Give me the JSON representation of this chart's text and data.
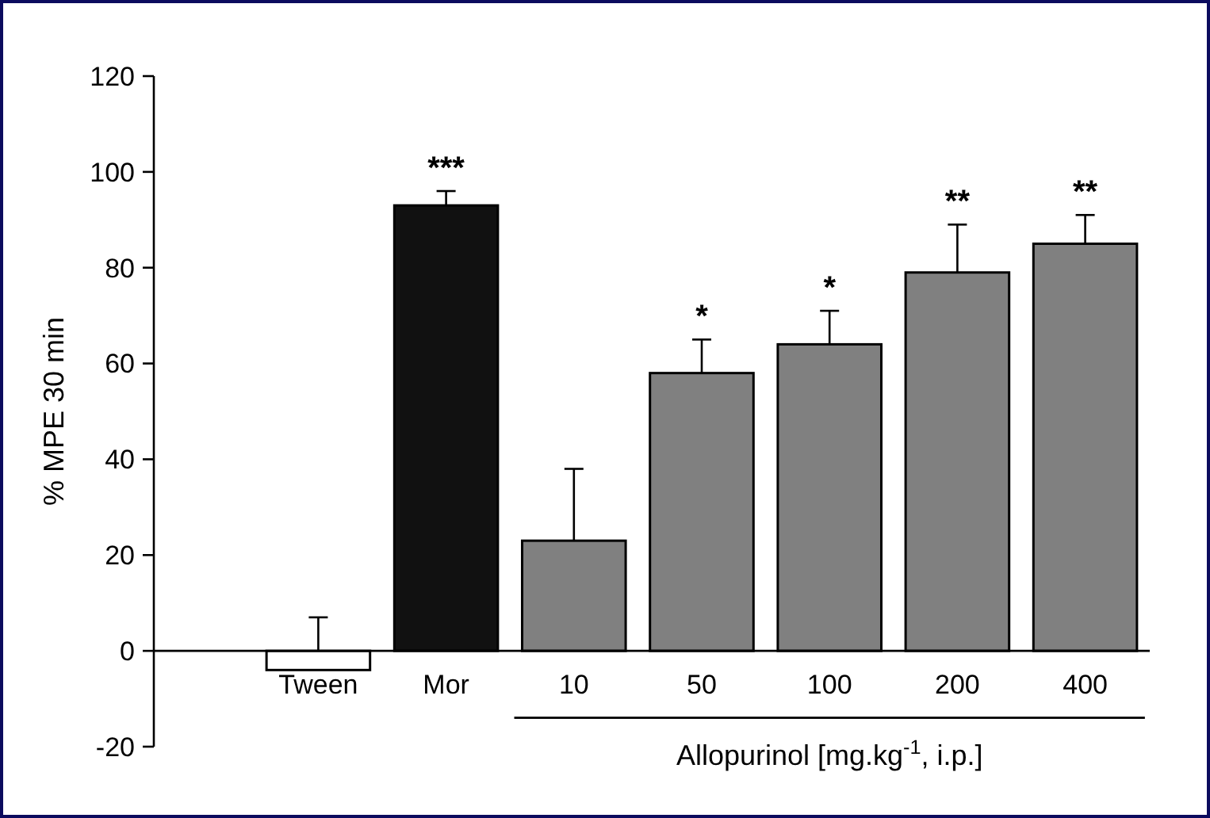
{
  "chart_data": {
    "type": "bar",
    "ylabel": "% MPE 30 min",
    "xlabel": "Allopurinol [mg.kg$^{-1}$, i.p.]",
    "categories": [
      "Tween",
      "Mor",
      "10",
      "50",
      "100",
      "200",
      "400"
    ],
    "values": [
      -4,
      93,
      23,
      58,
      64,
      79,
      85
    ],
    "colors": [
      "#ffffff",
      "#111111",
      "#808080",
      "#808080",
      "#808080",
      "#808080",
      "#808080"
    ],
    "errors": [
      11,
      3,
      15,
      7,
      7,
      10,
      6
    ],
    "ylim": [
      -20,
      120
    ],
    "yticks": [
      -20,
      0,
      20,
      40,
      60,
      80,
      100,
      120
    ],
    "annotations": [
      {
        "text": "***",
        "x": "Mor",
        "y": 96
      },
      {
        "text": "*",
        "x": "50",
        "y": 65
      },
      {
        "text": "*",
        "x": "100",
        "y": 71
      },
      {
        "text": "**",
        "x": "200",
        "y": 89
      },
      {
        "text": "**",
        "x": "400",
        "y": 91
      }
    ]
  }
}
